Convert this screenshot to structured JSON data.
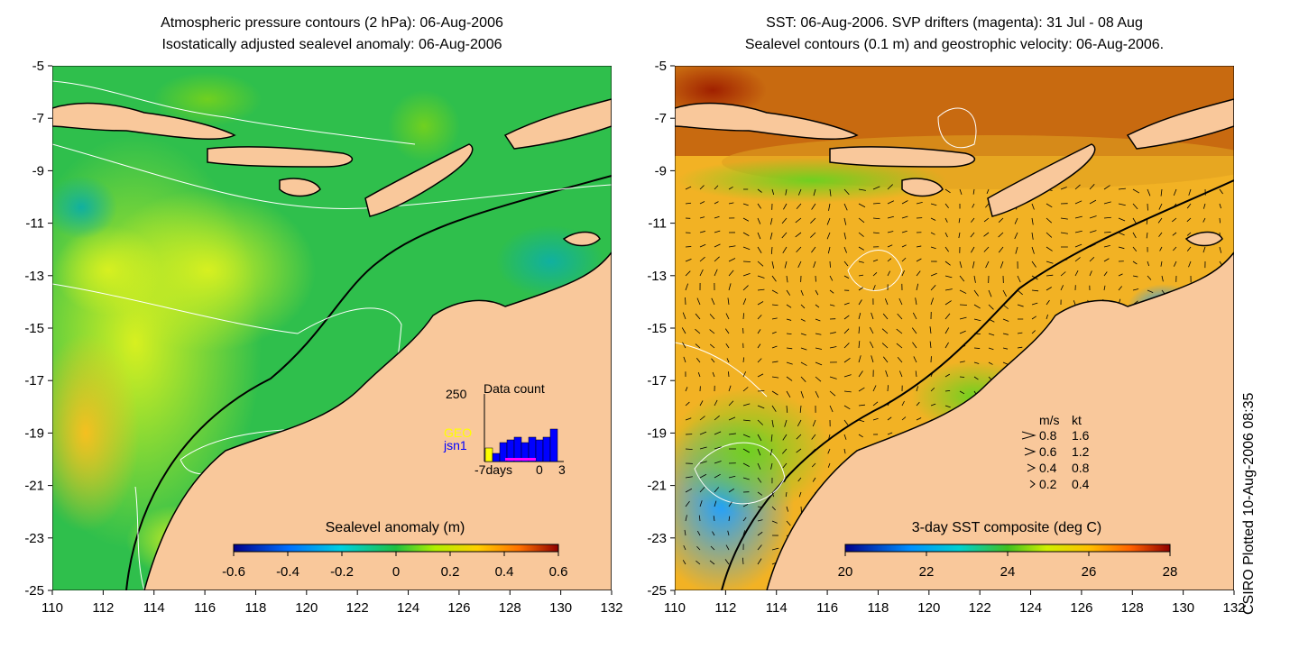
{
  "left_panel": {
    "title_line1": "Atmospheric pressure contours (2 hPa): 06-Aug-2006",
    "title_line2": "Isostatically adjusted sealevel anomaly: 06-Aug-2006",
    "colorbar_title": "Sealevel anomaly (m)",
    "colorbar_ticks": [
      "-0.6",
      "-0.4",
      "-0.2",
      "0",
      "0.2",
      "0.4",
      "0.6"
    ],
    "inset": {
      "title": "Data count",
      "ymax_label": "250",
      "legend_geo": "GEO",
      "legend_jsn1": "jsn1",
      "x_label_left": "-7days",
      "x_label_mid": "0",
      "x_label_right": "3",
      "geo_color": "#ffff00",
      "jsn1_color": "#0000ff",
      "geo_counts": [
        50
      ],
      "jsn1_counts": [
        30,
        70,
        80,
        90,
        70,
        90,
        80,
        90,
        120
      ]
    }
  },
  "right_panel": {
    "title_line1": "SST: 06-Aug-2006. SVP drifters (magenta): 31 Jul - 08 Aug",
    "title_line2": "Sealevel contours (0.1 m) and geostrophic velocity: 06-Aug-2006.",
    "colorbar_title": "3-day SST composite (deg C)",
    "colorbar_ticks": [
      "20",
      "22",
      "24",
      "26",
      "28"
    ],
    "velocity_legend": {
      "header_ms": "m/s",
      "header_kt": "kt",
      "rows": [
        {
          "ms": "0.8",
          "kt": "1.6"
        },
        {
          "ms": "0.6",
          "kt": "1.2"
        },
        {
          "ms": "0.4",
          "kt": "0.8"
        },
        {
          "ms": "0.2",
          "kt": "0.4"
        }
      ]
    }
  },
  "axes": {
    "x_ticks": [
      "110",
      "112",
      "114",
      "116",
      "118",
      "120",
      "122",
      "124",
      "126",
      "128",
      "130",
      "132"
    ],
    "y_ticks": [
      "-5",
      "-7",
      "-9",
      "-11",
      "-13",
      "-15",
      "-17",
      "-19",
      "-21",
      "-23",
      "-25"
    ]
  },
  "credit": "CSIRO Plotted 10-Aug-2006 08:35",
  "colors": {
    "land": "#f9c89b",
    "ocean_left": "#2fbf4c",
    "ocean_right": "#f2b224"
  }
}
